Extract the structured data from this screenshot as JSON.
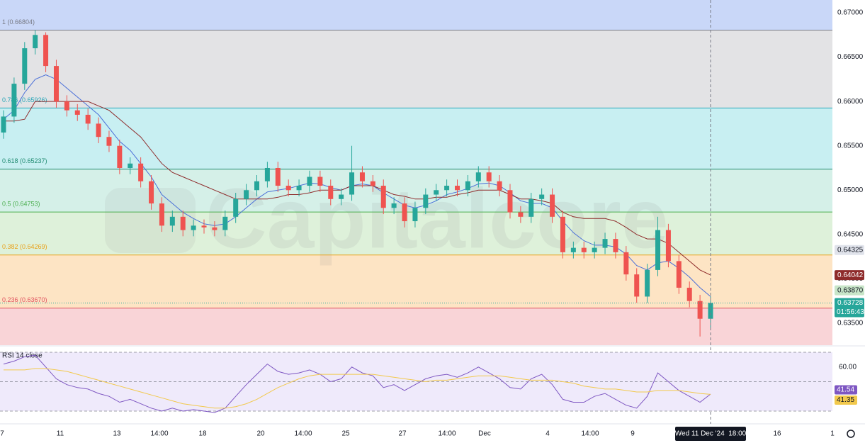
{
  "chart_data": [
    {
      "type": "candlestick",
      "watermark": "Capitalcore",
      "ylim": [
        0.63252,
        0.67144
      ],
      "yticks": [
        {
          "value": 0.635,
          "label": "0.63500"
        },
        {
          "value": 0.64,
          "label": "0.64000"
        },
        {
          "value": 0.645,
          "label": "0.64500"
        },
        {
          "value": 0.65,
          "label": "0.65000"
        },
        {
          "value": 0.655,
          "label": "0.65500"
        },
        {
          "value": 0.66,
          "label": "0.66000"
        },
        {
          "value": 0.665,
          "label": "0.66500"
        },
        {
          "value": 0.67,
          "label": "0.67000"
        }
      ],
      "up_color": "#26a69a",
      "down_color": "#ef5350",
      "top_fill": "#c9d7f8",
      "fib_levels": [
        {
          "label": "1 (0.66804)",
          "value": 0.66804,
          "color": "#787b86",
          "fill": "#e3e3e5"
        },
        {
          "label": "0.786 (0.65926)",
          "value": 0.65926,
          "color": "#2aa6b8",
          "fill": "#c8eff2"
        },
        {
          "label": "0.618 (0.65237)",
          "value": 0.65237,
          "color": "#1f8a70",
          "fill": "#d5f0e8"
        },
        {
          "label": "0.5 (0.64753)",
          "value": 0.64753,
          "color": "#4caf50",
          "fill": "#def1da"
        },
        {
          "label": "0.382 (0.64269)",
          "value": 0.64269,
          "color": "#e9a21a",
          "fill": "#fde4c4"
        },
        {
          "label": "0.236 (0.63670)",
          "value": 0.6367,
          "color": "#e0525e",
          "fill": "#f9d4d7"
        }
      ],
      "open": [
        0.6565,
        0.6583,
        0.662,
        0.666,
        0.6675,
        0.664,
        0.66,
        0.659,
        0.6585,
        0.6575,
        0.656,
        0.655,
        0.6525,
        0.653,
        0.651,
        0.6485,
        0.646,
        0.647,
        0.6455,
        0.646,
        0.6458,
        0.6455,
        0.647,
        0.649,
        0.65,
        0.651,
        0.6525,
        0.6505,
        0.65,
        0.6505,
        0.6515,
        0.6505,
        0.649,
        0.6495,
        0.652,
        0.651,
        0.6505,
        0.648,
        0.6485,
        0.6465,
        0.648,
        0.6495,
        0.65,
        0.6505,
        0.65,
        0.651,
        0.652,
        0.651,
        0.65,
        0.6475,
        0.647,
        0.649,
        0.6495,
        0.647,
        0.643,
        0.6435,
        0.643,
        0.6435,
        0.6445,
        0.643,
        0.6405,
        0.638,
        0.641,
        0.6455,
        0.642,
        0.639,
        0.6375,
        0.6355
      ],
      "high": [
        0.659,
        0.6627,
        0.6667,
        0.66804,
        0.6678,
        0.6647,
        0.6607,
        0.6597,
        0.6592,
        0.6582,
        0.6567,
        0.6557,
        0.6537,
        0.6537,
        0.6517,
        0.6492,
        0.6477,
        0.6477,
        0.6467,
        0.6467,
        0.6465,
        0.6477,
        0.6497,
        0.6507,
        0.6517,
        0.6532,
        0.6532,
        0.6512,
        0.6512,
        0.6522,
        0.6522,
        0.6512,
        0.6502,
        0.655,
        0.6527,
        0.6517,
        0.6512,
        0.6492,
        0.6492,
        0.6487,
        0.6502,
        0.6507,
        0.6512,
        0.6512,
        0.6517,
        0.6527,
        0.6527,
        0.6517,
        0.6507,
        0.6482,
        0.6497,
        0.6502,
        0.6502,
        0.6477,
        0.6442,
        0.6442,
        0.6442,
        0.6452,
        0.6452,
        0.6437,
        0.6412,
        0.6417,
        0.647,
        0.6462,
        0.6427,
        0.6397,
        0.6382,
        0.638
      ],
      "low": [
        0.6558,
        0.6576,
        0.6613,
        0.6653,
        0.6633,
        0.6593,
        0.6583,
        0.6578,
        0.6568,
        0.6553,
        0.6543,
        0.6518,
        0.6518,
        0.6503,
        0.6478,
        0.6453,
        0.6453,
        0.6448,
        0.6448,
        0.6451,
        0.6448,
        0.6448,
        0.6463,
        0.6483,
        0.6493,
        0.6503,
        0.6498,
        0.6493,
        0.6493,
        0.6498,
        0.6498,
        0.6483,
        0.6483,
        0.6488,
        0.6503,
        0.6498,
        0.6473,
        0.6473,
        0.6458,
        0.6458,
        0.6473,
        0.6488,
        0.6493,
        0.6493,
        0.6493,
        0.6503,
        0.6503,
        0.6493,
        0.6468,
        0.6463,
        0.6463,
        0.6483,
        0.6463,
        0.6423,
        0.6423,
        0.6423,
        0.6423,
        0.6428,
        0.6423,
        0.6398,
        0.6373,
        0.6373,
        0.6403,
        0.6413,
        0.6383,
        0.6368,
        0.6335,
        0.6345
      ],
      "close": [
        0.6583,
        0.662,
        0.666,
        0.6675,
        0.664,
        0.66,
        0.659,
        0.6585,
        0.6575,
        0.656,
        0.655,
        0.6525,
        0.653,
        0.651,
        0.6485,
        0.646,
        0.647,
        0.6455,
        0.646,
        0.6458,
        0.6455,
        0.647,
        0.649,
        0.65,
        0.651,
        0.6525,
        0.6505,
        0.65,
        0.6505,
        0.6515,
        0.6505,
        0.649,
        0.6495,
        0.652,
        0.651,
        0.6505,
        0.648,
        0.6485,
        0.6465,
        0.648,
        0.6495,
        0.65,
        0.6505,
        0.65,
        0.651,
        0.652,
        0.651,
        0.65,
        0.6475,
        0.647,
        0.649,
        0.6495,
        0.647,
        0.643,
        0.6435,
        0.643,
        0.6435,
        0.6445,
        0.643,
        0.6405,
        0.638,
        0.641,
        0.6455,
        0.642,
        0.639,
        0.6375,
        0.6355,
        0.63728
      ],
      "series": [
        {
          "color": "#4a6fd8",
          "values": [
            0.658,
            0.659,
            0.661,
            0.6625,
            0.663,
            0.6625,
            0.6615,
            0.6605,
            0.6595,
            0.6585,
            0.657,
            0.6555,
            0.6545,
            0.653,
            0.6515,
            0.6495,
            0.6485,
            0.6475,
            0.6468,
            0.6462,
            0.646,
            0.6462,
            0.647,
            0.648,
            0.649,
            0.6498,
            0.65,
            0.6502,
            0.6505,
            0.6508,
            0.6507,
            0.6503,
            0.65,
            0.6505,
            0.6507,
            0.6505,
            0.6497,
            0.649,
            0.6483,
            0.648,
            0.6483,
            0.6488,
            0.6495,
            0.6498,
            0.6502,
            0.6507,
            0.6508,
            0.6505,
            0.6497,
            0.6488,
            0.6485,
            0.6485,
            0.648,
            0.6465,
            0.6452,
            0.6443,
            0.6438,
            0.6438,
            0.6436,
            0.6428,
            0.6415,
            0.641,
            0.6418,
            0.642,
            0.6412,
            0.6402,
            0.639,
            0.638
          ]
        },
        {
          "color": "#8e2b2b",
          "values": [
            0.6578,
            0.6578,
            0.658,
            0.66,
            0.66,
            0.66,
            0.66,
            0.66,
            0.66,
            0.6595,
            0.659,
            0.658,
            0.657,
            0.656,
            0.6545,
            0.653,
            0.652,
            0.6515,
            0.651,
            0.6505,
            0.65,
            0.6495,
            0.649,
            0.649,
            0.649,
            0.649,
            0.6492,
            0.6495,
            0.6495,
            0.6497,
            0.65,
            0.65,
            0.65,
            0.6505,
            0.6505,
            0.6505,
            0.65,
            0.6495,
            0.6493,
            0.649,
            0.649,
            0.6492,
            0.6492,
            0.6495,
            0.6497,
            0.65,
            0.65,
            0.65,
            0.6495,
            0.649,
            0.649,
            0.6488,
            0.6485,
            0.6475,
            0.647,
            0.6468,
            0.6468,
            0.6468,
            0.6465,
            0.6458,
            0.645,
            0.6445,
            0.6445,
            0.644,
            0.643,
            0.642,
            0.641,
            0.64042
          ]
        }
      ],
      "markers": [
        {
          "value": 0.64325,
          "label": "0.64325",
          "color": "#e0e3eb",
          "text_color": "#131722"
        },
        {
          "value": 0.6387,
          "label": "0.63870",
          "color": "#c8e6c9",
          "text_color": "#131722"
        }
      ],
      "countdown": "01:56:43",
      "x_labels": [
        "7",
        "11",
        "13",
        "14:00",
        "18",
        "20",
        "14:00",
        "25",
        "27",
        "14:00",
        "Dec",
        "4",
        "14:00",
        "9",
        "16",
        "1"
      ],
      "crosshair_label": "Wed 11 Dec '24  18:00"
    },
    {
      "type": "line",
      "title": "RSI 14 close",
      "ylim": [
        21.3,
        73.4
      ],
      "yticks": [
        {
          "value": 60,
          "label": "60.00"
        }
      ],
      "hlines": [
        70,
        50,
        30
      ],
      "band_fill": "#efeafb",
      "series": [
        {
          "color": "#7e57c2",
          "values": [
            62,
            64,
            67,
            68,
            60,
            52,
            48,
            46,
            45,
            42,
            40,
            36,
            38,
            35,
            32,
            30,
            32,
            30,
            31,
            30,
            29,
            32,
            40,
            48,
            55,
            62,
            57,
            55,
            56,
            58,
            55,
            50,
            52,
            60,
            56,
            54,
            46,
            48,
            44,
            48,
            52,
            54,
            55,
            53,
            56,
            60,
            56,
            52,
            46,
            45,
            52,
            55,
            48,
            38,
            36,
            36,
            40,
            42,
            38,
            34,
            32,
            40,
            56,
            50,
            44,
            40,
            36,
            41.54
          ]
        },
        {
          "color": "#f2c94c",
          "values": [
            58,
            58,
            58,
            59,
            59,
            58,
            57,
            55,
            53,
            51,
            49,
            47,
            45,
            43,
            41,
            39,
            37,
            35,
            34,
            33,
            32,
            32,
            33,
            35,
            38,
            42,
            46,
            49,
            52,
            54,
            55,
            55,
            55,
            55,
            55,
            55,
            54,
            53,
            52,
            51,
            50,
            51,
            51,
            52,
            53,
            54,
            54,
            54,
            53,
            52,
            51,
            51,
            51,
            50,
            49,
            47,
            46,
            45,
            45,
            44,
            43,
            43,
            44,
            44,
            44,
            43,
            42,
            41.35
          ]
        }
      ]
    }
  ]
}
